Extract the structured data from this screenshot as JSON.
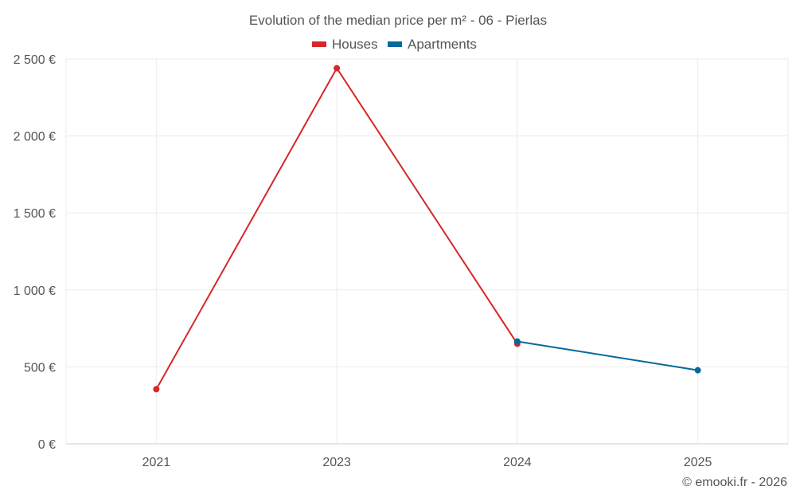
{
  "chart_data": {
    "type": "line",
    "title": "Evolution of the median price per m² - 06 - Pierlas",
    "categories": [
      "2021",
      "2023",
      "2024",
      "2025"
    ],
    "y_tick_labels": [
      "0 €",
      "500 €",
      "1 000 €",
      "1 500 €",
      "2 000 €",
      "2 500 €"
    ],
    "y_ticks": [
      0,
      500,
      1000,
      1500,
      2000,
      2500
    ],
    "ylim": [
      0,
      2500
    ],
    "grid": true,
    "legend_position": "top-center",
    "series": [
      {
        "name": "Houses",
        "color": "#d62728",
        "values": [
          355,
          2440,
          650,
          null
        ]
      },
      {
        "name": "Apartments",
        "color": "#08689c",
        "values": [
          null,
          null,
          665,
          478
        ]
      }
    ],
    "credit": "© emooki.fr - 2026"
  }
}
